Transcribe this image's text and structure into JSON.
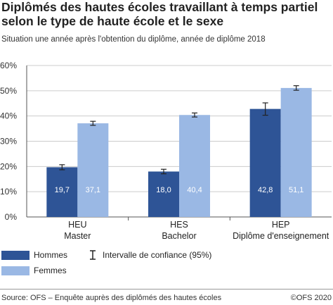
{
  "title": "Diplômés des hautes écoles travaillant à temps partiel selon le type de haute école et le sexe",
  "subtitle": "Situation une année après l'obtention du diplôme, année de diplôme 2018",
  "source": "Source: OFS – Enquête auprès des diplômés des hautes écoles",
  "copyright": "©OFS 2020",
  "colors": {
    "hommes": "#2e5496",
    "femmes": "#9ab8e4",
    "grid": "#cccccc",
    "axis": "#555555"
  },
  "legend": {
    "hommes": "Hommes",
    "femmes": "Femmes",
    "ci": "Intervalle de confiance (95%)"
  },
  "chart_data": {
    "type": "bar",
    "title": "Diplômés des hautes écoles travaillant à temps partiel selon le type de haute école et le sexe",
    "subtitle": "Situation une année après l'obtention du diplôme, année de diplôme 2018",
    "categories": [
      {
        "line1": "HEU",
        "line2": "Master"
      },
      {
        "line1": "HES",
        "line2": "Bachelor"
      },
      {
        "line1": "HEP",
        "line2": "Diplôme d'enseignement"
      }
    ],
    "series": [
      {
        "name": "Hommes",
        "values": [
          19.7,
          18.0,
          42.8
        ],
        "labels": [
          "19,7",
          "18,0",
          "42,8"
        ],
        "ci": [
          [
            18.7,
            20.7
          ],
          [
            17.1,
            18.9
          ],
          [
            40.3,
            45.2
          ]
        ]
      },
      {
        "name": "Femmes",
        "values": [
          37.1,
          40.4,
          51.1
        ],
        "labels": [
          "37,1",
          "40,4",
          "51,1"
        ],
        "ci": [
          [
            36.3,
            37.9
          ],
          [
            39.6,
            41.2
          ],
          [
            50.2,
            52.0
          ]
        ]
      }
    ],
    "ylim": [
      0,
      60
    ],
    "yticks": [
      {
        "value": 0,
        "label": "0%"
      },
      {
        "value": 10,
        "label": "10%"
      },
      {
        "value": 20,
        "label": "20%"
      },
      {
        "value": 30,
        "label": "30%"
      },
      {
        "value": 40,
        "label": "40%"
      },
      {
        "value": 50,
        "label": "50%"
      },
      {
        "value": 60,
        "label": "60%"
      }
    ],
    "grid": true,
    "legend_position": "bottom-left"
  }
}
